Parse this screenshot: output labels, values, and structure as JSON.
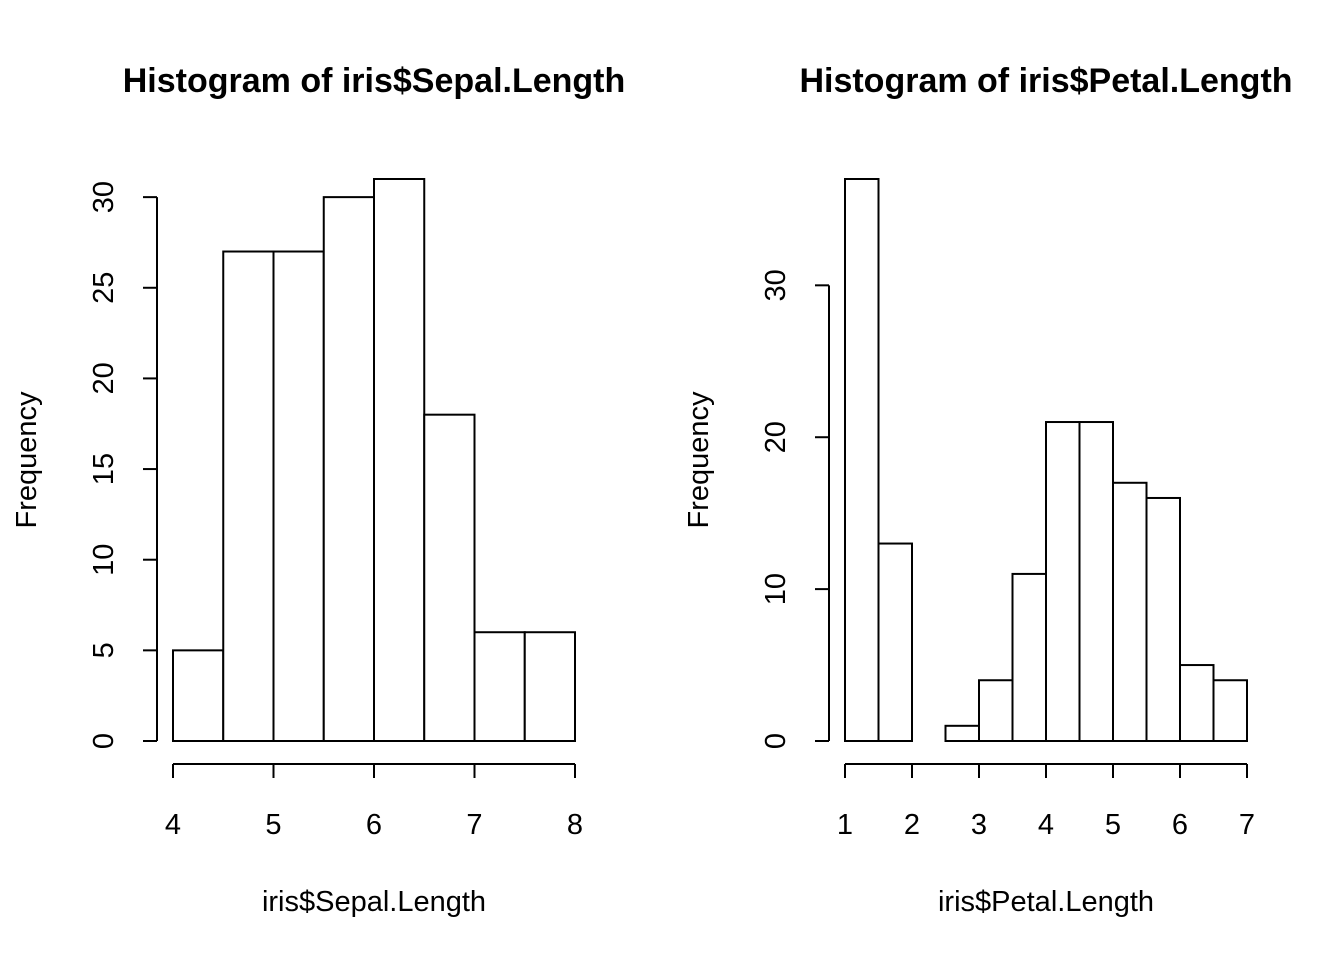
{
  "chart_data": [
    {
      "type": "bar",
      "title": "Histogram of iris$Sepal.Length",
      "xlabel": "iris$Sepal.Length",
      "ylabel": "Frequency",
      "bins": [
        {
          "from": 4.0,
          "to": 4.5,
          "count": 5
        },
        {
          "from": 4.5,
          "to": 5.0,
          "count": 27
        },
        {
          "from": 5.0,
          "to": 5.5,
          "count": 27
        },
        {
          "from": 5.5,
          "to": 6.0,
          "count": 30
        },
        {
          "from": 6.0,
          "to": 6.5,
          "count": 31
        },
        {
          "from": 6.5,
          "to": 7.0,
          "count": 18
        },
        {
          "from": 7.0,
          "to": 7.5,
          "count": 6
        },
        {
          "from": 7.5,
          "to": 8.0,
          "count": 6
        }
      ],
      "xticks": [
        "4",
        "5",
        "6",
        "7",
        "8"
      ],
      "yticks": [
        "0",
        "5",
        "10",
        "15",
        "20",
        "25",
        "30"
      ],
      "xlim": [
        4,
        8
      ],
      "ylim": [
        0,
        31
      ],
      "grid": false,
      "bar_fill": "#ffffff",
      "bar_stroke": "#000000"
    },
    {
      "type": "bar",
      "title": "Histogram of iris$Petal.Length",
      "xlabel": "iris$Petal.Length",
      "ylabel": "Frequency",
      "bins": [
        {
          "from": 1.0,
          "to": 1.5,
          "count": 37
        },
        {
          "from": 1.5,
          "to": 2.0,
          "count": 13
        },
        {
          "from": 2.0,
          "to": 2.5,
          "count": 0
        },
        {
          "from": 2.5,
          "to": 3.0,
          "count": 1
        },
        {
          "from": 3.0,
          "to": 3.5,
          "count": 4
        },
        {
          "from": 3.5,
          "to": 4.0,
          "count": 11
        },
        {
          "from": 4.0,
          "to": 4.5,
          "count": 21
        },
        {
          "from": 4.5,
          "to": 5.0,
          "count": 21
        },
        {
          "from": 5.0,
          "to": 5.5,
          "count": 17
        },
        {
          "from": 5.5,
          "to": 6.0,
          "count": 16
        },
        {
          "from": 6.0,
          "to": 6.5,
          "count": 5
        },
        {
          "from": 6.5,
          "to": 7.0,
          "count": 4
        }
      ],
      "xticks": [
        "1",
        "2",
        "3",
        "4",
        "5",
        "6",
        "7"
      ],
      "yticks": [
        "0",
        "10",
        "20",
        "30"
      ],
      "xlim": [
        1,
        7
      ],
      "ylim": [
        0,
        37
      ],
      "grid": false,
      "bar_fill": "#ffffff",
      "bar_stroke": "#000000"
    }
  ]
}
